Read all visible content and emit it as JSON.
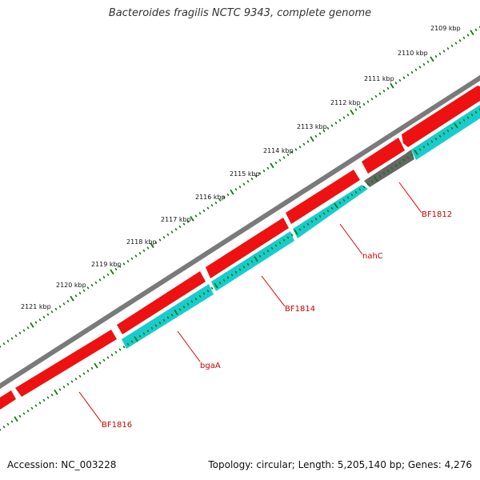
{
  "title": "Bacteroides fragilis NCTC 9343, complete genome",
  "footer": {
    "accession": "Accession: NC_003228",
    "summary": "Topology: circular; Length: 5,205,140 bp; Genes: 4,276"
  },
  "tick_labels": [
    "2109 kbp",
    "2110 kbp",
    "2111 kbp",
    "2112 kbp",
    "2113 kbp",
    "2114 kbp",
    "2115 kbp",
    "2116 kbp",
    "2117 kbp",
    "2118 kbp",
    "2119 kbp",
    "2120 kbp",
    "2121 kbp"
  ],
  "gene_labels": [
    "BF1812",
    "nahC",
    "BF1814",
    "bgaA",
    "BF1816"
  ],
  "colors": {
    "backbone": "#7a7a7a",
    "forward_cds": "#ee1111",
    "reverse_cds": "#19cccc",
    "other_feature": "#666666",
    "tick": "#117711",
    "label_line": "#dd0000"
  }
}
